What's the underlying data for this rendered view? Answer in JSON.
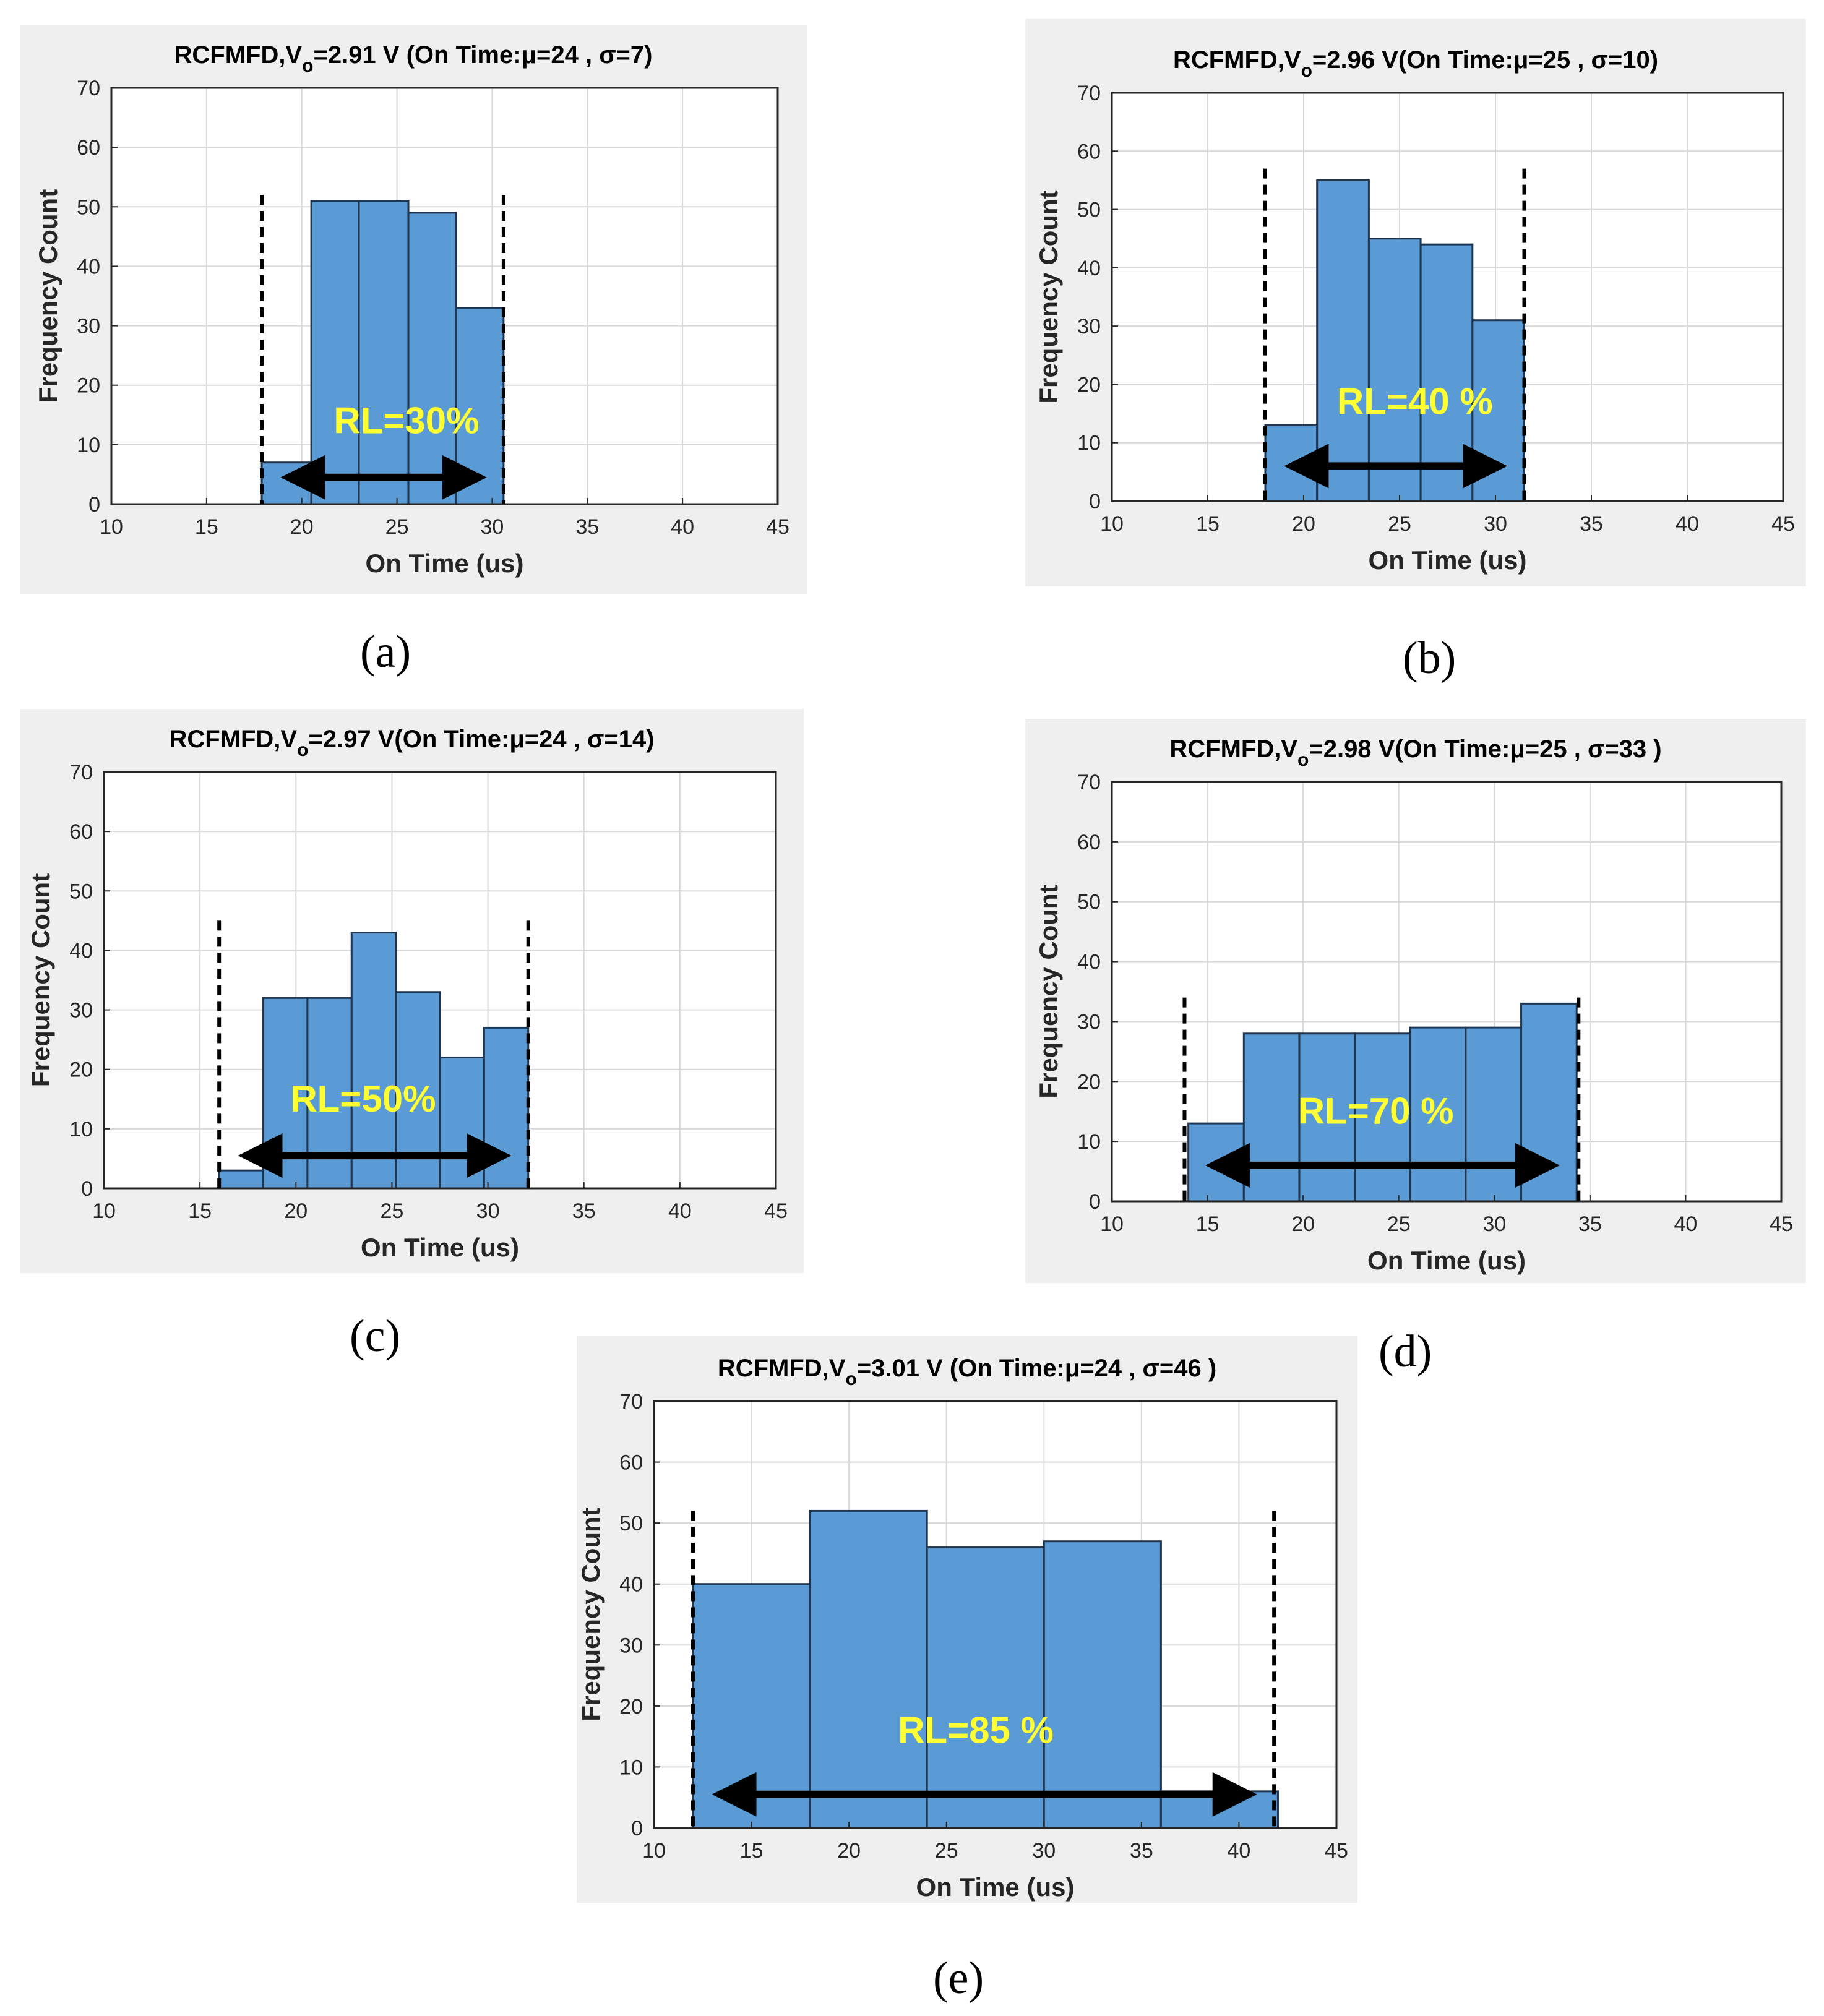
{
  "colors": {
    "bar": "#5b9bd5",
    "background": "#efefef",
    "rl_text": "#ffff33"
  },
  "chart_data": [
    {
      "id": "a",
      "type": "bar",
      "caption": "(a)",
      "title_prefix": "RCFMFD,V",
      "title_sub": "o",
      "title_suffix": "=2.91 V (On Time:μ=24 , σ=7)",
      "xlabel": "On Time (us)",
      "ylabel": "Frequency Count",
      "xlim": [
        10,
        45
      ],
      "ylim": [
        0,
        70
      ],
      "xticks": [
        10,
        15,
        20,
        25,
        30,
        35,
        40,
        45
      ],
      "yticks": [
        0,
        10,
        20,
        30,
        40,
        50,
        60,
        70
      ],
      "grid": true,
      "bins": [
        [
          17.9,
          20.5,
          7
        ],
        [
          20.5,
          23.0,
          51
        ],
        [
          23.0,
          25.6,
          51
        ],
        [
          25.6,
          28.1,
          49
        ],
        [
          28.1,
          30.6,
          33
        ]
      ],
      "dashed_x": [
        17.9,
        30.6
      ],
      "dashed_top": 52,
      "arrow": [
        18.3,
        30.3
      ],
      "arrow_y": 4.5,
      "rl_label": "RL=30%",
      "rl_pos": [
        25.5,
        14
      ]
    },
    {
      "id": "b",
      "type": "bar",
      "caption": "(b)",
      "title_prefix": "RCFMFD,V",
      "title_sub": "o",
      "title_suffix": "=2.96 V(On Time:μ=25 , σ=10)",
      "xlabel": "On Time (us)",
      "ylabel": "Frequency Count",
      "xlim": [
        10,
        45
      ],
      "ylim": [
        0,
        70
      ],
      "xticks": [
        10,
        15,
        20,
        25,
        30,
        35,
        40,
        45
      ],
      "yticks": [
        0,
        10,
        20,
        30,
        40,
        50,
        60,
        70
      ],
      "grid": true,
      "bins": [
        [
          18.0,
          20.7,
          13
        ],
        [
          20.7,
          23.4,
          55
        ],
        [
          23.4,
          26.1,
          45
        ],
        [
          26.1,
          28.8,
          44
        ],
        [
          28.8,
          31.5,
          31
        ]
      ],
      "dashed_x": [
        18.0,
        31.5
      ],
      "dashed_top": 57,
      "arrow": [
        18.4,
        31.2
      ],
      "arrow_y": 6,
      "rl_label": "RL=40 %",
      "rl_pos": [
        25.8,
        17
      ]
    },
    {
      "id": "c",
      "type": "bar",
      "caption": "(c)",
      "title_prefix": "RCFMFD,V",
      "title_sub": "o",
      "title_suffix": "=2.97 V(On Time:μ=24 , σ=14)",
      "xlabel": "On Time (us)",
      "ylabel": "Frequency Count",
      "xlim": [
        10,
        45
      ],
      "ylim": [
        0,
        70
      ],
      "xticks": [
        10,
        15,
        20,
        25,
        30,
        35,
        40,
        45
      ],
      "yticks": [
        0,
        10,
        20,
        30,
        40,
        50,
        60,
        70
      ],
      "grid": true,
      "bins": [
        [
          16.0,
          18.3,
          3
        ],
        [
          18.3,
          20.6,
          32
        ],
        [
          20.6,
          22.9,
          32
        ],
        [
          22.9,
          25.2,
          43
        ],
        [
          25.2,
          27.5,
          33
        ],
        [
          27.5,
          29.8,
          22
        ],
        [
          29.8,
          32.1,
          27
        ]
      ],
      "dashed_x": [
        16.0,
        32.1
      ],
      "dashed_top": 45,
      "arrow": [
        16.4,
        31.8
      ],
      "arrow_y": 5.5,
      "rl_label": "RL=50%",
      "rl_pos": [
        23.5,
        15
      ]
    },
    {
      "id": "d",
      "type": "bar",
      "caption": "(d)",
      "title_prefix": "RCFMFD,V",
      "title_sub": "o",
      "title_suffix": "=2.98 V(On Time:μ=25 , σ=33 )",
      "xlabel": "On Time (us)",
      "ylabel": "Frequency Count",
      "xlim": [
        10,
        45
      ],
      "ylim": [
        0,
        70
      ],
      "xticks": [
        10,
        15,
        20,
        25,
        30,
        35,
        40,
        45
      ],
      "yticks": [
        0,
        10,
        20,
        30,
        40,
        50,
        60,
        70
      ],
      "grid": true,
      "bins": [
        [
          14.0,
          16.9,
          13
        ],
        [
          16.9,
          19.8,
          28
        ],
        [
          19.8,
          22.7,
          28
        ],
        [
          22.7,
          25.6,
          28
        ],
        [
          25.6,
          28.5,
          29
        ],
        [
          28.5,
          31.4,
          29
        ],
        [
          31.4,
          34.3,
          33
        ]
      ],
      "dashed_x": [
        13.8,
        34.4
      ],
      "dashed_top": 34,
      "arrow": [
        14.3,
        34.0
      ],
      "arrow_y": 6,
      "rl_label": "RL=70 %",
      "rl_pos": [
        23.8,
        15
      ]
    },
    {
      "id": "e",
      "type": "bar",
      "caption": "(e)",
      "title_prefix": "RCFMFD,V",
      "title_sub": "o",
      "title_suffix": "=3.01 V (On Time:μ=24 , σ=46 )",
      "xlabel": "On Time (us)",
      "ylabel": "Frequency Count",
      "xlim": [
        10,
        45
      ],
      "ylim": [
        0,
        70
      ],
      "xticks": [
        10,
        15,
        20,
        25,
        30,
        35,
        40,
        45
      ],
      "yticks": [
        0,
        10,
        20,
        30,
        40,
        50,
        60,
        70
      ],
      "grid": true,
      "bins": [
        [
          12.0,
          18.0,
          40
        ],
        [
          18.0,
          24.0,
          52
        ],
        [
          24.0,
          30.0,
          46
        ],
        [
          30.0,
          36.0,
          47
        ],
        [
          36.0,
          42.0,
          6
        ]
      ],
      "dashed_x": [
        12.0,
        41.8
      ],
      "dashed_top": 52,
      "arrow": [
        12.4,
        41.5
      ],
      "arrow_y": 5.5,
      "rl_label": "RL=85 %",
      "rl_pos": [
        26.5,
        16
      ]
    }
  ]
}
